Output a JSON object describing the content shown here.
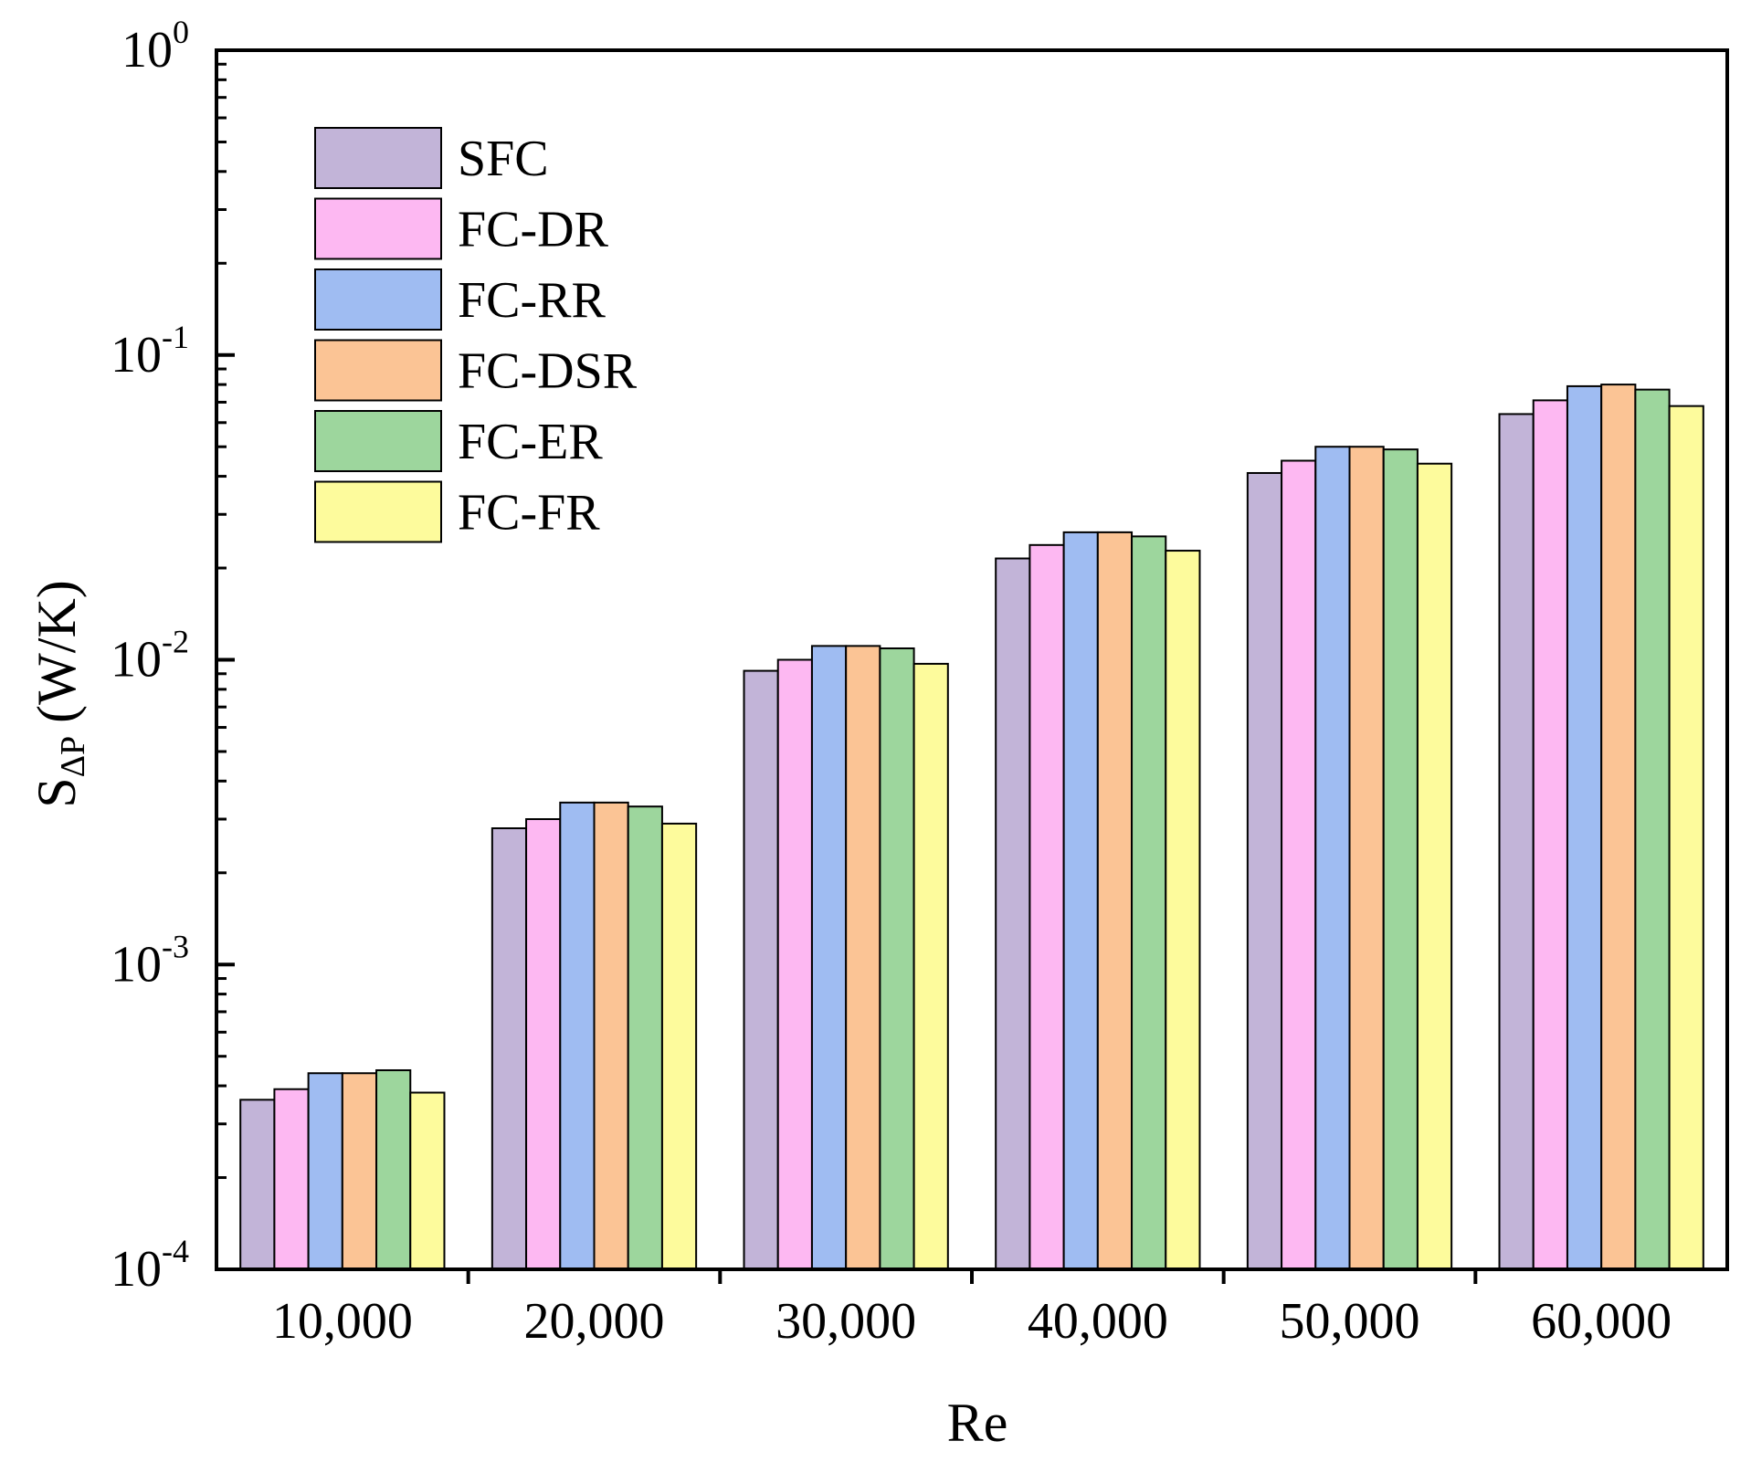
{
  "chart_data": {
    "type": "bar",
    "title": "",
    "xlabel": "Re",
    "ylabel": {
      "main": "S",
      "subscript": "ΔP",
      "unit": "(W/K)"
    },
    "yscale": "log",
    "ylim": [
      0.0001,
      1
    ],
    "yticks": [
      {
        "value": 1,
        "base": "10",
        "exp": "0"
      },
      {
        "value": 0.1,
        "base": "10",
        "exp": "-1"
      },
      {
        "value": 0.01,
        "base": "10",
        "exp": "-2"
      },
      {
        "value": 0.001,
        "base": "10",
        "exp": "-3"
      },
      {
        "value": 0.0001,
        "base": "10",
        "exp": "-4"
      }
    ],
    "categories": [
      "10,000",
      "20,000",
      "30,000",
      "40,000",
      "50,000",
      "60,000"
    ],
    "series": [
      {
        "name": "SFC",
        "color": "#c2b4d8",
        "values": [
          0.00036,
          0.0028,
          0.0092,
          0.0215,
          0.041,
          0.064
        ]
      },
      {
        "name": "FC-DR",
        "color": "#fdb8f2",
        "values": [
          0.00039,
          0.003,
          0.01,
          0.0238,
          0.045,
          0.071
        ]
      },
      {
        "name": "FC-RR",
        "color": "#9fbcf2",
        "values": [
          0.00044,
          0.0034,
          0.0111,
          0.0262,
          0.05,
          0.079
        ]
      },
      {
        "name": "FC-DSR",
        "color": "#fbc495",
        "values": [
          0.00044,
          0.0034,
          0.0111,
          0.0262,
          0.05,
          0.08
        ]
      },
      {
        "name": "FC-ER",
        "color": "#9dd69d",
        "values": [
          0.00045,
          0.0033,
          0.0109,
          0.0254,
          0.049,
          0.077
        ]
      },
      {
        "name": "FC-FR",
        "color": "#fdfb9c",
        "values": [
          0.00038,
          0.0029,
          0.0097,
          0.0228,
          0.044,
          0.068
        ]
      }
    ],
    "legend": "top-left",
    "grid": false
  }
}
